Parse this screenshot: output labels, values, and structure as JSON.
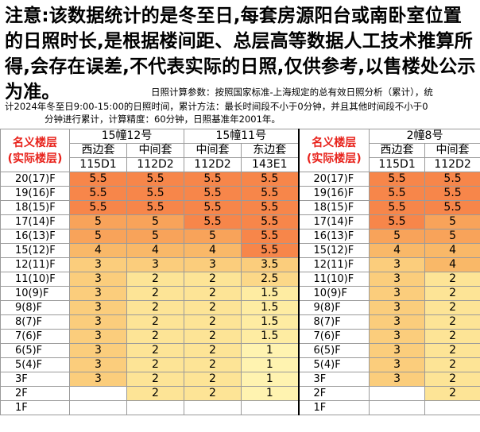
{
  "notice": "注意:该数据统计的是冬至日,每套房源阳台或南卧室位置的日照时长,是根据楼间距、总层高等数据人工技术推算所得,会存在误差,不代表实际的日照,仅供参考,以售楼处公示为准。",
  "params_line1": "日照计算参数：按照国家标准-上海规定的总有效日照分析（累计），统",
  "params_line2": "计2024年冬至日9:00-15:00的日照时间，累计方法：最长时间段不小于0分钟，并且其他时间段不小于0",
  "params_line3": "分钟进行累计，计算精度：60分钟，日照基准年2001年。",
  "colors": {
    "high": "#f7864a",
    "low": "#fff3b0",
    "label_red": "#e8231c"
  },
  "left_table": {
    "floor_header_1": "名义楼层",
    "floor_header_2": "(实际楼层)",
    "buildings": [
      {
        "name": "15幢12号",
        "units": [
          {
            "pos": "西边套",
            "code": "115D1"
          },
          {
            "pos": "中间套",
            "code": "112D2"
          }
        ]
      },
      {
        "name": "15幢11号",
        "units": [
          {
            "pos": "中间套",
            "code": "112D2"
          },
          {
            "pos": "东边套",
            "code": "143E1"
          }
        ]
      }
    ],
    "rows": [
      {
        "floor": "20(17)F",
        "v": [
          "5.5",
          "5.5",
          "5.5",
          "5.5"
        ]
      },
      {
        "floor": "19(16)F",
        "v": [
          "5.5",
          "5.5",
          "5.5",
          "5.5"
        ]
      },
      {
        "floor": "18(15)F",
        "v": [
          "5.5",
          "5.5",
          "5.5",
          "5.5"
        ]
      },
      {
        "floor": "17(14)F",
        "v": [
          "5",
          "5",
          "5.5",
          "5.5"
        ]
      },
      {
        "floor": "16(13)F",
        "v": [
          "5",
          "5",
          "5",
          "5.5"
        ]
      },
      {
        "floor": "15(12)F",
        "v": [
          "4",
          "4",
          "4",
          "5.5"
        ]
      },
      {
        "floor": "12(11)F",
        "v": [
          "3",
          "3",
          "3",
          "3.5"
        ]
      },
      {
        "floor": "11(10)F",
        "v": [
          "3",
          "2",
          "2",
          "2.5"
        ]
      },
      {
        "floor": "10(9)F",
        "v": [
          "3",
          "2",
          "2",
          "1.5"
        ]
      },
      {
        "floor": "9(8)F",
        "v": [
          "3",
          "2",
          "2",
          "1.5"
        ]
      },
      {
        "floor": "8(7)F",
        "v": [
          "3",
          "2",
          "2",
          "1.5"
        ]
      },
      {
        "floor": "7(6)F",
        "v": [
          "3",
          "2",
          "2",
          "1.5"
        ]
      },
      {
        "floor": "6(5)F",
        "v": [
          "3",
          "2",
          "2",
          "1"
        ]
      },
      {
        "floor": "5(4)F",
        "v": [
          "3",
          "2",
          "2",
          "1"
        ]
      },
      {
        "floor": "3F",
        "v": [
          "3",
          "2",
          "2",
          "1"
        ]
      },
      {
        "floor": "2F",
        "v": [
          "",
          "2",
          "2",
          "1"
        ]
      },
      {
        "floor": "1F",
        "v": [
          "",
          "",
          "",
          ""
        ]
      }
    ]
  },
  "right_table": {
    "floor_header_1": "名义楼层",
    "floor_header_2": "(实际楼层)",
    "building": "2幢8号",
    "units": [
      {
        "pos": "西边套",
        "code": "115D1"
      },
      {
        "pos": "中间套",
        "code": "112D2"
      }
    ],
    "rows": [
      {
        "floor": "20(17)F",
        "v": [
          "5.5",
          "5.5"
        ]
      },
      {
        "floor": "19(16)F",
        "v": [
          "5.5",
          "5.5"
        ]
      },
      {
        "floor": "18(15)F",
        "v": [
          "5.5",
          "5.5"
        ]
      },
      {
        "floor": "17(14)F",
        "v": [
          "5.5",
          "5"
        ]
      },
      {
        "floor": "16(13)F",
        "v": [
          "5",
          "5"
        ]
      },
      {
        "floor": "15(12)F",
        "v": [
          "4",
          "4"
        ]
      },
      {
        "floor": "12(11)F",
        "v": [
          "3",
          "4"
        ]
      },
      {
        "floor": "11(10)F",
        "v": [
          "3",
          "2"
        ]
      },
      {
        "floor": "10(9)F",
        "v": [
          "3",
          "2"
        ]
      },
      {
        "floor": "9(8)F",
        "v": [
          "3",
          "2"
        ]
      },
      {
        "floor": "8(7)F",
        "v": [
          "3",
          "2"
        ]
      },
      {
        "floor": "7(6)F",
        "v": [
          "3",
          "2"
        ]
      },
      {
        "floor": "6(5)F",
        "v": [
          "3",
          "2"
        ]
      },
      {
        "floor": "5(4)F",
        "v": [
          "3",
          "2"
        ]
      },
      {
        "floor": "3F",
        "v": [
          "3",
          "2"
        ]
      },
      {
        "floor": "2F",
        "v": [
          "",
          "2"
        ]
      },
      {
        "floor": "1F",
        "v": [
          "",
          ""
        ]
      }
    ]
  }
}
